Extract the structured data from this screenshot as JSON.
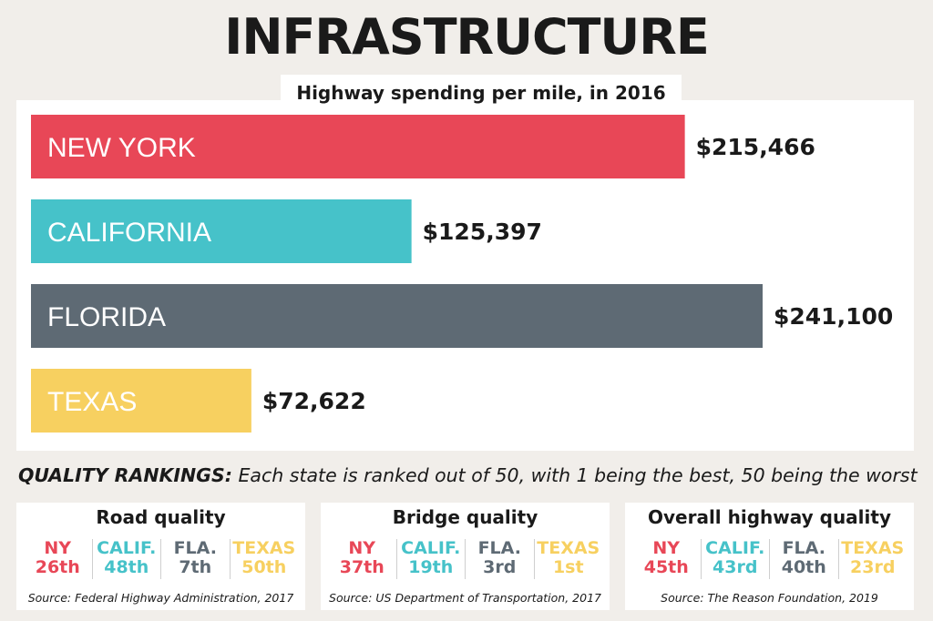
{
  "title": "INFRASTRUCTURE",
  "colors": {
    "ny": "#e84757",
    "ca": "#46c2c9",
    "fl": "#5e6a74",
    "tx": "#f7d060"
  },
  "chart_data": {
    "type": "bar",
    "orientation": "horizontal",
    "title": "Highway spending per mile, in 2016",
    "categories": [
      "NEW YORK",
      "CALIFORNIA",
      "FLORIDA",
      "TEXAS"
    ],
    "values": [
      215466,
      125397,
      241100,
      72622
    ],
    "value_labels": [
      "$215,466",
      "$125,397",
      "$241,100",
      "$72,622"
    ],
    "colors": [
      "#e84757",
      "#46c2c9",
      "#5e6a74",
      "#f7d060"
    ],
    "xlim": [
      0,
      241100
    ]
  },
  "rankings": {
    "heading_bold": "QUALITY RANKINGS:",
    "heading_text": "Each state is ranked out of 50, with 1 being the best, 50 being the worst",
    "cards": [
      {
        "title": "Road quality",
        "ranks": [
          {
            "state": "NY",
            "rank": "26th"
          },
          {
            "state": "CALIF.",
            "rank": "48th"
          },
          {
            "state": "FLA.",
            "rank": "7th"
          },
          {
            "state": "TEXAS",
            "rank": "50th"
          }
        ],
        "source": "Source: Federal Highway Administration, 2017"
      },
      {
        "title": "Bridge quality",
        "ranks": [
          {
            "state": "NY",
            "rank": "37th"
          },
          {
            "state": "CALIF.",
            "rank": "19th"
          },
          {
            "state": "FLA.",
            "rank": "3rd"
          },
          {
            "state": "TEXAS",
            "rank": "1st"
          }
        ],
        "source": "Source: US Department of Transportation, 2017"
      },
      {
        "title": "Overall highway quality",
        "ranks": [
          {
            "state": "NY",
            "rank": "45th"
          },
          {
            "state": "CALIF.",
            "rank": "43rd"
          },
          {
            "state": "FLA.",
            "rank": "40th"
          },
          {
            "state": "TEXAS",
            "rank": "23rd"
          }
        ],
        "source": "Source: The Reason Foundation, 2019"
      }
    ]
  }
}
